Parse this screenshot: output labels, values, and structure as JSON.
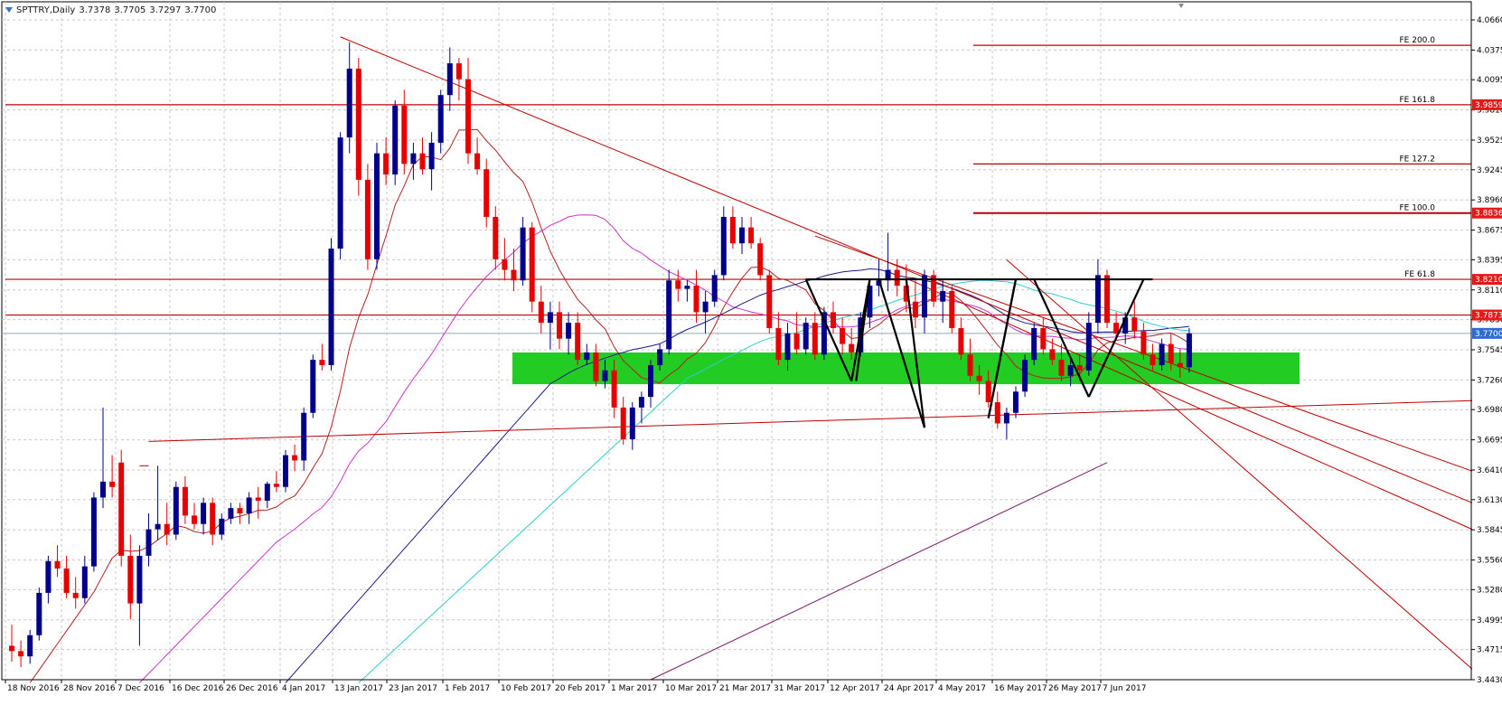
{
  "window": {
    "symbol": "SPTTRY,Daily",
    "ohlc": [
      "3.7378",
      "3.7705",
      "3.7297",
      "3.7700"
    ]
  },
  "colors": {
    "background": "#ffffff",
    "grid": "#c8c8c8",
    "bull_candle": "#00008b",
    "bear_candle": "#e60000",
    "fib_line": "#c00000",
    "fib_label_bg": "#e31a1a",
    "current_price_bg": "#2e6bd6",
    "support_zone": "#22cc22",
    "ma_fast": "#b22222",
    "ma_mid": "#cc33cc",
    "ma_slow_blue": "#1a1a8c",
    "ma_slow_cyan": "#33cccc",
    "pattern_lines": "#000000"
  },
  "chart_data": {
    "type": "candlestick",
    "timeframe": "Daily",
    "grid": true,
    "ylim": [
      3.443,
      4.066
    ],
    "yticks": [
      "4.0660",
      "4.0375",
      "4.0095",
      "3.9810",
      "3.9525",
      "3.9245",
      "3.8960",
      "3.8675",
      "3.8395",
      "3.8110",
      "3.7830",
      "3.7545",
      "3.7260",
      "3.6980",
      "3.6695",
      "3.6410",
      "3.6130",
      "3.5845",
      "3.5560",
      "3.5280",
      "3.4995",
      "3.4715",
      "3.4430"
    ],
    "xticks": [
      "18 Nov 2016",
      "28 Nov 2016",
      "7 Dec 2016",
      "16 Dec 2016",
      "26 Dec 2016",
      "4 Jan 2017",
      "13 Jan 2017",
      "23 Jan 2017",
      "1 Feb 2017",
      "10 Feb 2017",
      "20 Feb 2017",
      "1 Mar 2017",
      "10 Mar 2017",
      "21 Mar 2017",
      "31 Mar 2017",
      "12 Apr 2017",
      "24 Apr 2017",
      "4 May 2017",
      "16 May 2017",
      "26 May 2017",
      "7 Jun 2017"
    ],
    "last_price": "3.7700",
    "price_tags": [
      "3.9859",
      "3.8836",
      "3.8210",
      "3.7873",
      "3.7700"
    ],
    "fib_levels": [
      {
        "label": "FE 200.0",
        "price": 4.042
      },
      {
        "label": "FE 161.8",
        "price": 3.9859,
        "tag": "3.9859"
      },
      {
        "label": "FE 127.2",
        "price": 3.93
      },
      {
        "label": "FE 100.0",
        "price": 3.8836,
        "tag": "3.8836"
      },
      {
        "label": "FE 61.8",
        "price": 3.821,
        "tag": "3.8210"
      },
      {
        "label": "",
        "price": 3.7873,
        "tag": "3.7873"
      }
    ],
    "support_zone": {
      "from": 3.722,
      "to": 3.752
    },
    "candles": [
      [
        3.475,
        3.495,
        3.46,
        3.47
      ],
      [
        3.47,
        3.48,
        3.455,
        3.465
      ],
      [
        3.465,
        3.49,
        3.458,
        3.485
      ],
      [
        3.485,
        3.53,
        3.48,
        3.525
      ],
      [
        3.525,
        3.56,
        3.515,
        3.555
      ],
      [
        3.555,
        3.57,
        3.54,
        3.548
      ],
      [
        3.548,
        3.56,
        3.52,
        3.525
      ],
      [
        3.525,
        3.54,
        3.51,
        3.52
      ],
      [
        3.52,
        3.56,
        3.515,
        3.55
      ],
      [
        3.55,
        3.62,
        3.545,
        3.615
      ],
      [
        3.615,
        3.7,
        3.605,
        3.63
      ],
      [
        3.63,
        3.655,
        3.615,
        3.625
      ],
      [
        3.648,
        3.66,
        3.55,
        3.56
      ],
      [
        3.56,
        3.58,
        3.5,
        3.515
      ],
      [
        3.515,
        3.57,
        3.475,
        3.56
      ],
      [
        3.56,
        3.6,
        3.55,
        3.585
      ],
      [
        3.585,
        3.645,
        3.575,
        3.59
      ],
      [
        3.59,
        3.61,
        3.57,
        3.58
      ],
      [
        3.58,
        3.63,
        3.575,
        3.625
      ],
      [
        3.625,
        3.635,
        3.59,
        3.598
      ],
      [
        3.598,
        3.61,
        3.585,
        3.59
      ],
      [
        3.59,
        3.615,
        3.58,
        3.61
      ],
      [
        3.61,
        3.615,
        3.57,
        3.58
      ],
      [
        3.58,
        3.6,
        3.575,
        3.595
      ],
      [
        3.595,
        3.61,
        3.59,
        3.605
      ],
      [
        3.605,
        3.61,
        3.59,
        3.6
      ],
      [
        3.6,
        3.62,
        3.59,
        3.615
      ],
      [
        3.615,
        3.625,
        3.595,
        3.612
      ],
      [
        3.612,
        3.63,
        3.605,
        3.628
      ],
      [
        3.628,
        3.64,
        3.62,
        3.625
      ],
      [
        3.625,
        3.66,
        3.62,
        3.655
      ],
      [
        3.655,
        3.665,
        3.64,
        3.65
      ],
      [
        3.65,
        3.7,
        3.64,
        3.695
      ],
      [
        3.695,
        3.75,
        3.69,
        3.745
      ],
      [
        3.745,
        3.76,
        3.735,
        3.74
      ],
      [
        3.74,
        3.86,
        3.735,
        3.85
      ],
      [
        3.85,
        3.96,
        3.84,
        3.955
      ],
      [
        3.955,
        4.045,
        3.94,
        4.02
      ],
      [
        4.02,
        4.03,
        3.9,
        3.915
      ],
      [
        3.915,
        3.93,
        3.83,
        3.84
      ],
      [
        3.84,
        3.95,
        3.83,
        3.94
      ],
      [
        3.94,
        3.955,
        3.91,
        3.92
      ],
      [
        3.92,
        3.99,
        3.91,
        3.985
      ],
      [
        3.985,
        4.0,
        3.92,
        3.93
      ],
      [
        3.93,
        3.95,
        3.915,
        3.94
      ],
      [
        3.94,
        3.955,
        3.92,
        3.925
      ],
      [
        3.925,
        3.96,
        3.905,
        3.95
      ],
      [
        3.95,
        4.0,
        3.94,
        3.995
      ],
      [
        3.995,
        4.04,
        3.98,
        4.025
      ],
      [
        4.025,
        4.03,
        3.99,
        4.01
      ],
      [
        4.01,
        4.03,
        3.93,
        3.94
      ],
      [
        3.94,
        3.955,
        3.92,
        3.925
      ],
      [
        3.925,
        3.935,
        3.87,
        3.88
      ],
      [
        3.88,
        3.89,
        3.83,
        3.84
      ],
      [
        3.84,
        3.86,
        3.82,
        3.83
      ],
      [
        3.83,
        3.85,
        3.81,
        3.82
      ],
      [
        3.82,
        3.88,
        3.815,
        3.87
      ],
      [
        3.87,
        3.875,
        3.79,
        3.8
      ],
      [
        3.8,
        3.815,
        3.77,
        3.78
      ],
      [
        3.78,
        3.8,
        3.755,
        3.79
      ],
      [
        3.79,
        3.8,
        3.755,
        3.765
      ],
      [
        3.765,
        3.79,
        3.75,
        3.78
      ],
      [
        3.78,
        3.79,
        3.74,
        3.745
      ],
      [
        3.745,
        3.76,
        3.74,
        3.752
      ],
      [
        3.752,
        3.76,
        3.72,
        3.725
      ],
      [
        3.725,
        3.745,
        3.718,
        3.735
      ],
      [
        3.735,
        3.745,
        3.69,
        3.7
      ],
      [
        3.7,
        3.71,
        3.665,
        3.67
      ],
      [
        3.67,
        3.705,
        3.66,
        3.7
      ],
      [
        3.7,
        3.715,
        3.685,
        3.71
      ],
      [
        3.71,
        3.745,
        3.7,
        3.74
      ],
      [
        3.74,
        3.76,
        3.735,
        3.755
      ],
      [
        3.755,
        3.83,
        3.75,
        3.82
      ],
      [
        3.82,
        3.83,
        3.8,
        3.812
      ],
      [
        3.812,
        3.82,
        3.8,
        3.815
      ],
      [
        3.815,
        3.83,
        3.78,
        3.79
      ],
      [
        3.79,
        3.81,
        3.77,
        3.8
      ],
      [
        3.8,
        3.83,
        3.795,
        3.825
      ],
      [
        3.825,
        3.89,
        3.82,
        3.88
      ],
      [
        3.88,
        3.89,
        3.85,
        3.855
      ],
      [
        3.855,
        3.88,
        3.845,
        3.87
      ],
      [
        3.87,
        3.88,
        3.85,
        3.855
      ],
      [
        3.855,
        3.86,
        3.82,
        3.825
      ],
      [
        3.825,
        3.83,
        3.77,
        3.775
      ],
      [
        3.775,
        3.79,
        3.74,
        3.745
      ],
      [
        3.745,
        3.78,
        3.735,
        3.77
      ],
      [
        3.77,
        3.79,
        3.75,
        3.755
      ],
      [
        3.755,
        3.785,
        3.75,
        3.78
      ],
      [
        3.78,
        3.79,
        3.745,
        3.75
      ],
      [
        3.75,
        3.795,
        3.745,
        3.79
      ],
      [
        3.79,
        3.8,
        3.77,
        3.775
      ],
      [
        3.775,
        3.785,
        3.75,
        3.76
      ],
      [
        3.76,
        3.775,
        3.745,
        3.752
      ],
      [
        3.752,
        3.79,
        3.748,
        3.785
      ],
      [
        3.785,
        3.82,
        3.775,
        3.815
      ],
      [
        3.815,
        3.84,
        3.805,
        3.82
      ],
      [
        3.82,
        3.865,
        3.81,
        3.83
      ],
      [
        3.83,
        3.84,
        3.805,
        3.815
      ],
      [
        3.815,
        3.835,
        3.79,
        3.8
      ],
      [
        3.8,
        3.82,
        3.775,
        3.785
      ],
      [
        3.785,
        3.83,
        3.77,
        3.825
      ],
      [
        3.825,
        3.83,
        3.795,
        3.8
      ],
      [
        3.8,
        3.82,
        3.78,
        3.81
      ],
      [
        3.81,
        3.815,
        3.77,
        3.775
      ],
      [
        3.775,
        3.785,
        3.745,
        3.75
      ],
      [
        3.75,
        3.765,
        3.725,
        3.73
      ],
      [
        3.73,
        3.74,
        3.712,
        3.725
      ],
      [
        3.725,
        3.735,
        3.7,
        3.705
      ],
      [
        3.705,
        3.715,
        3.68,
        3.685
      ],
      [
        3.685,
        3.7,
        3.67,
        3.695
      ],
      [
        3.695,
        3.72,
        3.69,
        3.715
      ],
      [
        3.715,
        3.75,
        3.71,
        3.745
      ],
      [
        3.745,
        3.78,
        3.74,
        3.775
      ],
      [
        3.775,
        3.785,
        3.75,
        3.755
      ],
      [
        3.755,
        3.765,
        3.74,
        3.745
      ],
      [
        3.745,
        3.76,
        3.725,
        3.73
      ],
      [
        3.73,
        3.745,
        3.72,
        3.74
      ],
      [
        3.74,
        3.75,
        3.725,
        3.735
      ],
      [
        3.735,
        3.79,
        3.73,
        3.78
      ],
      [
        3.78,
        3.84,
        3.77,
        3.825
      ],
      [
        3.825,
        3.83,
        3.775,
        3.78
      ],
      [
        3.78,
        3.79,
        3.765,
        3.77
      ],
      [
        3.77,
        3.79,
        3.76,
        3.785
      ],
      [
        3.785,
        3.8,
        3.765,
        3.772
      ],
      [
        3.772,
        3.78,
        3.745,
        3.75
      ],
      [
        3.75,
        3.76,
        3.735,
        3.74
      ],
      [
        3.74,
        3.765,
        3.735,
        3.76
      ],
      [
        3.76,
        3.77,
        3.735,
        3.742
      ],
      [
        3.742,
        3.755,
        3.728,
        3.738
      ],
      [
        3.738,
        3.775,
        3.733,
        3.77
      ]
    ]
  }
}
